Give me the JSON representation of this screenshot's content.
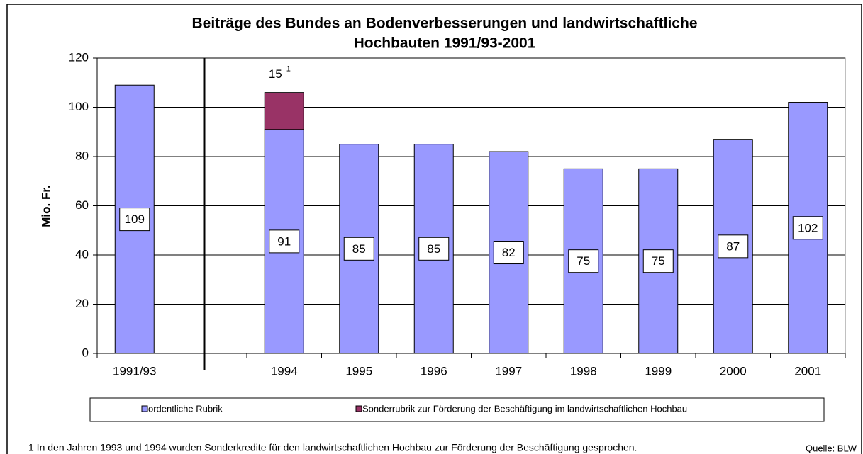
{
  "chart_data": {
    "type": "bar",
    "stacked": true,
    "title": [
      "Beiträge des Bundes an Bodenverbesserungen und landwirtschaftliche",
      "Hochbauten 1991/93-2001"
    ],
    "y_label": "Mio. Fr.",
    "categories": [
      "1991/93",
      null,
      "1994",
      "1995",
      "1996",
      "1997",
      "1998",
      "1999",
      "2000",
      "2001"
    ],
    "series": [
      {
        "name": "ordentliche Rubrik",
        "color": "#9999ff",
        "values": [
          109,
          null,
          91,
          85,
          85,
          82,
          75,
          75,
          87,
          102
        ]
      },
      {
        "name": "Sonderrubrik zur Förderung der Beschäftigung im landwirtschaftlichen Hochbau",
        "color": "#993366",
        "values": [
          null,
          null,
          15,
          null,
          null,
          null,
          null,
          null,
          null,
          null
        ]
      }
    ],
    "footnote_marker": "1",
    "ylim": [
      0,
      120
    ],
    "yticks": [
      0,
      20,
      40,
      60,
      80,
      100,
      120
    ],
    "grid": true,
    "legend": "bottom",
    "footnote": "1 In den Jahren 1993 und 1994 wurden Sonderkredite für den landwirtschaftlichen Hochbau zur Förderung der Beschäftigung gesprochen.",
    "source": "Quelle: BLW"
  }
}
